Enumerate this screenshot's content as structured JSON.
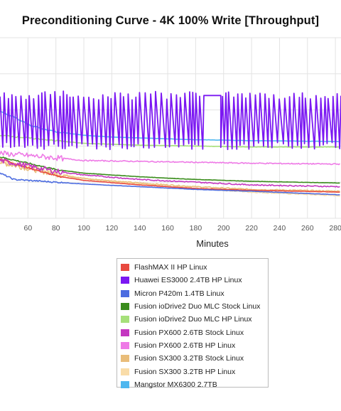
{
  "chart_data": {
    "type": "line",
    "title": "Preconditioning Curve - 4K 100% Write [Throughput]",
    "xlabel": "Minutes",
    "ylabel": "",
    "xlim": [
      40,
      284
    ],
    "ylim": [
      0,
      10
    ],
    "grid": true,
    "x_ticks": [
      60,
      80,
      100,
      120,
      140,
      160,
      180,
      200,
      220,
      240,
      260,
      280
    ],
    "legend_position": "bottom",
    "series": [
      {
        "name": "FlashMAX II HP Linux",
        "color": "#e8493f",
        "x": [
          40,
          60,
          80,
          100,
          140,
          180,
          220,
          284
        ],
        "values": [
          3.3,
          2.8,
          2.35,
          2.1,
          1.85,
          1.65,
          1.55,
          1.45
        ]
      },
      {
        "name": "Huawei ES3000 2.4TB HP Linux",
        "color": "#7b18f2",
        "x": [
          40,
          284
        ],
        "values": [
          6.8,
          6.8
        ]
      },
      {
        "name": "Micron P420m 1.4TB Linux",
        "color": "#4c6ce0",
        "x": [
          40,
          50,
          80,
          100,
          140,
          180,
          220,
          284
        ],
        "values": [
          2.5,
          2.15,
          2.0,
          1.9,
          1.75,
          1.6,
          1.5,
          1.3
        ]
      },
      {
        "name": "Fusion ioDrive2 Duo MLC Stock Linux",
        "color": "#3a8c1c",
        "x": [
          40,
          80,
          100,
          140,
          180,
          220,
          284
        ],
        "values": [
          3.4,
          2.7,
          2.5,
          2.3,
          2.15,
          2.05,
          1.95
        ]
      },
      {
        "name": "Fusion ioDrive2 Duo MLC HP Linux",
        "color": "#a6e07a",
        "x": [
          40,
          80,
          100,
          140,
          180,
          220,
          284
        ],
        "values": [
          4.6,
          4.3,
          4.15,
          4.05,
          4.0,
          3.95,
          3.95
        ]
      },
      {
        "name": "Fusion PX600 2.6TB Stock Linux",
        "color": "#c437c0",
        "x": [
          40,
          80,
          100,
          140,
          180,
          220,
          284
        ],
        "values": [
          3.2,
          2.6,
          2.4,
          2.15,
          2.0,
          1.85,
          1.75
        ]
      },
      {
        "name": "Fusion PX600 2.6TB HP Linux",
        "color": "#ee7ae6",
        "x": [
          40,
          80,
          100,
          140,
          180,
          220,
          284
        ],
        "values": [
          3.6,
          3.35,
          3.2,
          3.15,
          3.1,
          3.05,
          3.0
        ]
      },
      {
        "name": "Fusion SX300 3.2TB Stock Linux",
        "color": "#e9bd7a",
        "x": [
          40,
          80,
          100,
          140,
          180,
          220,
          284
        ],
        "values": [
          3.1,
          2.45,
          2.2,
          1.95,
          1.75,
          1.6,
          1.5
        ]
      },
      {
        "name": "Fusion SX300 3.2TB HP Linux",
        "color": "#f9dca8",
        "x": [
          40,
          80,
          100,
          140,
          180,
          220,
          284
        ],
        "values": [
          3.2,
          2.5,
          2.2,
          1.9,
          1.65,
          1.45,
          1.25
        ]
      },
      {
        "name": "Mangstor MX6300 2.7TB",
        "color": "#4fb7ef",
        "x": [
          40,
          50,
          60,
          70,
          80,
          100,
          120,
          140,
          160,
          180,
          220,
          284
        ],
        "values": [
          5.9,
          5.6,
          5.2,
          4.95,
          4.8,
          4.6,
          4.5,
          4.45,
          4.4,
          4.35,
          4.3,
          4.25
        ]
      }
    ]
  }
}
